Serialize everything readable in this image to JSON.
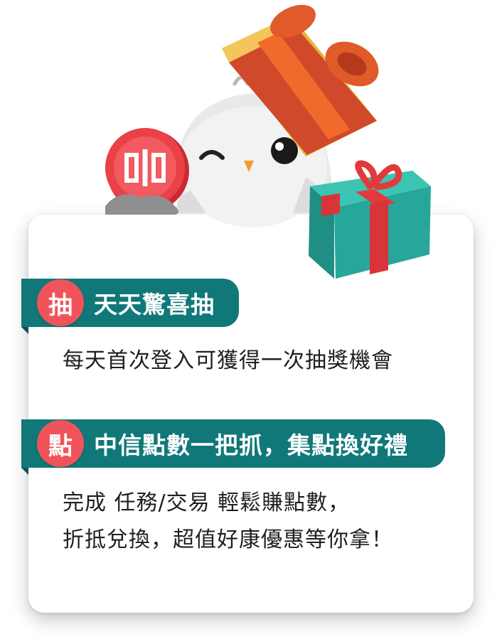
{
  "sections": [
    {
      "badge": "抽",
      "title": "天天驚喜抽",
      "lines": [
        "每天首次登入可獲得一次抽獎機會"
      ]
    },
    {
      "badge": "點",
      "title": "中信點數一把抓，集點換好禮",
      "lines": [
        "完成 任務/交易 輕鬆賺點數，",
        "折抵兌換，超值好康優惠等你拿！"
      ]
    }
  ],
  "illustration": {
    "icons": [
      "owl-mascot-icon",
      "red-coin-icon",
      "open-gift-box-icon",
      "green-gift-box-icon"
    ]
  },
  "colors": {
    "ribbon": "#107879",
    "badge": "#f0545a",
    "coin": "#e4363c",
    "gift_green": "#27a799",
    "gift_lid": "#e8b33a"
  }
}
